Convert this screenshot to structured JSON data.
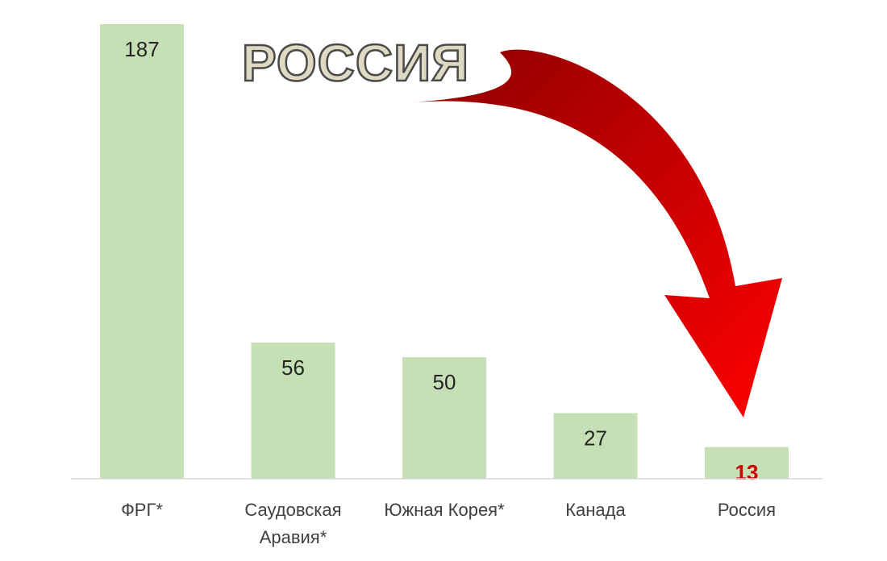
{
  "chart_data": {
    "type": "bar",
    "title": "",
    "xlabel": "",
    "ylabel": "",
    "categories": [
      "ФРГ*",
      "Саудовская Аравия*",
      "Южная Корея*",
      "Канада",
      "Россия"
    ],
    "category_lines": [
      [
        "ФРГ*"
      ],
      [
        "Саудовская",
        "Аравия*"
      ],
      [
        "Южная Корея*"
      ],
      [
        "Канада"
      ],
      [
        "Россия"
      ]
    ],
    "values": [
      187,
      56,
      50,
      27,
      13
    ],
    "value_labels": [
      "187",
      "56",
      "50",
      "27",
      "13"
    ],
    "highlight_index": 4,
    "ylim": [
      0,
      187
    ],
    "grid": false,
    "legend": "none",
    "annotation": {
      "text": "РОССИЯ",
      "arrow_target": "Россия"
    },
    "colors": {
      "bar": "#c5e0b4",
      "highlight_label": "#cc0000",
      "arrow_dark": "#8b0000",
      "arrow_light": "#ff0000",
      "annotation_fill": "#ddd9c3"
    }
  }
}
